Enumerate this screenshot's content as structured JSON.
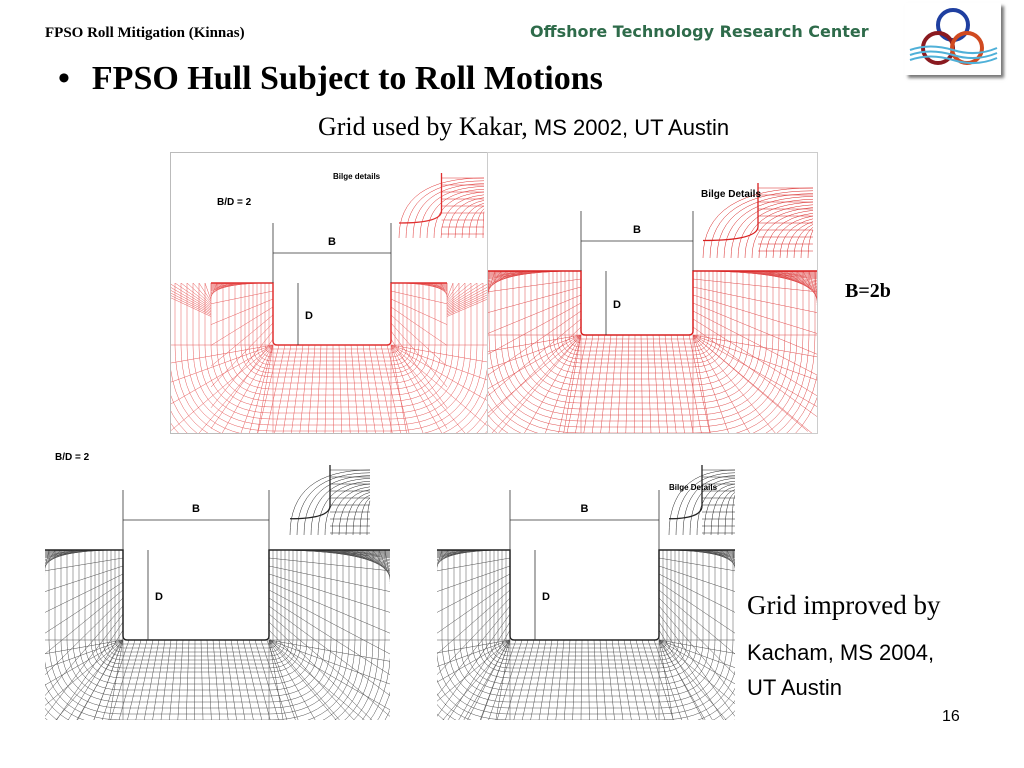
{
  "header": {
    "left": "FPSO Roll Mitigation (Kinnas)",
    "org": "Offshore Technology Research Center",
    "logo": "OTRC rings logo"
  },
  "title": {
    "bullet": "•",
    "text": "FPSO Hull Subject to Roll Motions"
  },
  "subtitle": {
    "serif": "Grid used by Kakar,",
    "sans": " MS 2002, UT Austin"
  },
  "figures": [
    {
      "ratio": "B/D = 2",
      "bilge": "Bilge details",
      "b": "B",
      "d": "D",
      "color": "#e03030"
    },
    {
      "bilge": "Bilge Details",
      "b": "B",
      "d": "D",
      "color": "#d82020"
    },
    {
      "ratio": "B/D = 2",
      "b": "B",
      "d": "D",
      "color": "#222222"
    },
    {
      "bilge": "Bilge Details",
      "b": "B",
      "d": "D",
      "color": "#222222"
    }
  ],
  "note_b": "B=2b",
  "improved": {
    "line1": "Grid improved by",
    "line2": "Kacham, MS 2004,",
    "line3": "UT Austin"
  },
  "page_number": "16"
}
